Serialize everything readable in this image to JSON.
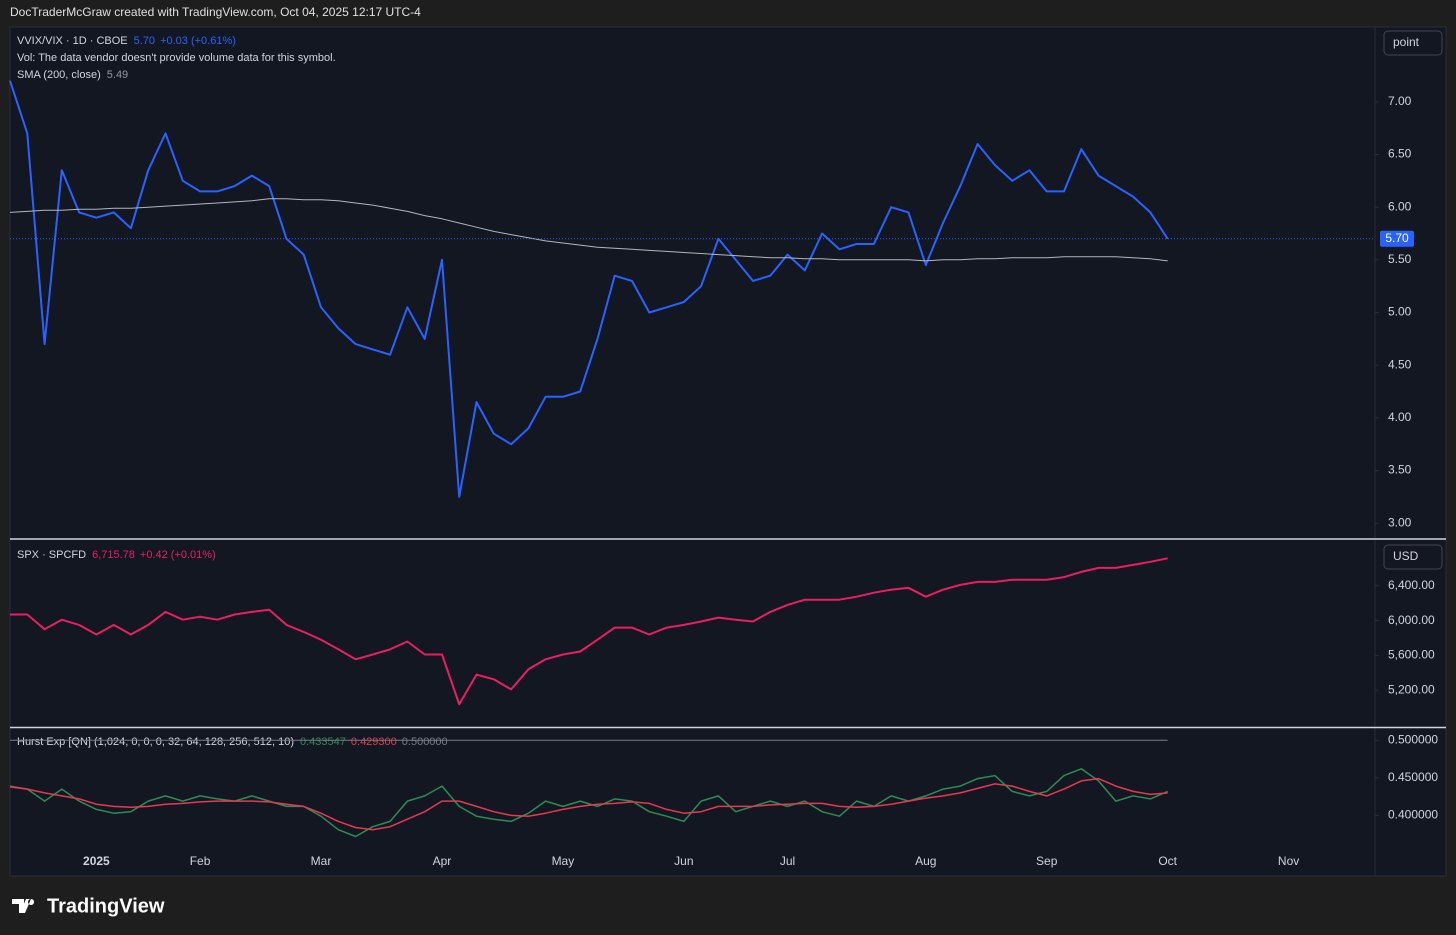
{
  "header": {
    "text": "DocTraderMcGraw created with TradingView.com, Oct 04, 2025 12:17 UTC-4"
  },
  "footer": {
    "brand": "TradingView"
  },
  "chart_data": [
    {
      "type": "line",
      "title": "VVIX/VIX · 1D · CBOE",
      "title_values": [
        "5.70",
        "+0.03 (+0.61%)"
      ],
      "note": "Vol: The data vendor doesn't provide volume data for this symbol.",
      "scale_button": "point",
      "ylim": [
        2.86,
        7.71
      ],
      "yticks": [
        {
          "value": 3,
          "label": "3.00"
        },
        {
          "value": 3.5,
          "label": "3.50"
        },
        {
          "value": 4,
          "label": "4.00"
        },
        {
          "value": 4.5,
          "label": "4.50"
        },
        {
          "value": 5,
          "label": "5.00"
        },
        {
          "value": 5.5,
          "label": "5.50"
        },
        {
          "value": 6,
          "label": "6.00"
        },
        {
          "value": 6.5,
          "label": "6.50"
        },
        {
          "value": 7,
          "label": "7.00"
        }
      ],
      "price_line": {
        "value": 5.7,
        "label": "5.70",
        "color": "#2962ff"
      },
      "series": [
        {
          "color": "#2962ff",
          "values": [
            7.2,
            6.7,
            4.7,
            6.35,
            5.95,
            5.9,
            5.95,
            5.8,
            6.35,
            6.7,
            6.25,
            6.15,
            6.15,
            6.2,
            6.3,
            6.2,
            5.7,
            5.55,
            5.05,
            4.85,
            4.7,
            4.65,
            4.6,
            5.05,
            4.75,
            5.5,
            3.25,
            4.15,
            3.85,
            3.75,
            3.9,
            4.2,
            4.2,
            4.25,
            4.75,
            5.35,
            5.3,
            5.0,
            5.05,
            5.1,
            5.25,
            5.7,
            5.5,
            5.3,
            5.35,
            5.55,
            5.4,
            5.75,
            5.6,
            5.65,
            5.65,
            6.0,
            5.95,
            5.45,
            5.85,
            6.2,
            6.6,
            6.4,
            6.25,
            6.35,
            6.15,
            6.15,
            6.55,
            6.3,
            6.2,
            6.1,
            5.95,
            5.7,
            null,
            null,
            null,
            null,
            null,
            null,
            null,
            null,
            null,
            null,
            null,
            null
          ]
        },
        {
          "name": "SMA (200, close)",
          "value_label": "5.49",
          "color": "#b2b5be",
          "values": [
            5.95,
            5.96,
            5.97,
            5.97,
            5.98,
            5.98,
            5.99,
            5.99,
            6.0,
            6.01,
            6.02,
            6.03,
            6.04,
            6.05,
            6.06,
            6.08,
            6.08,
            6.07,
            6.07,
            6.06,
            6.04,
            6.02,
            5.99,
            5.96,
            5.92,
            5.89,
            5.85,
            5.81,
            5.77,
            5.74,
            5.71,
            5.68,
            5.66,
            5.64,
            5.62,
            5.61,
            5.6,
            5.59,
            5.58,
            5.57,
            5.56,
            5.55,
            5.54,
            5.53,
            5.52,
            5.52,
            5.51,
            5.51,
            5.5,
            5.5,
            5.5,
            5.5,
            5.5,
            5.49,
            5.5,
            5.5,
            5.51,
            5.51,
            5.52,
            5.52,
            5.52,
            5.53,
            5.53,
            5.53,
            5.53,
            5.52,
            5.51,
            5.49,
            null,
            null,
            null,
            null,
            null,
            null,
            null,
            null,
            null,
            null,
            null,
            null
          ]
        }
      ]
    },
    {
      "type": "line",
      "title": "SPX · SPCFD",
      "title_values": [
        "6,715.78",
        "+0.42 (+0.01%)"
      ],
      "scale_button": "USD",
      "ylim": [
        4789,
        6926
      ],
      "yticks": [
        {
          "value": 5200,
          "label": "5,200.00"
        },
        {
          "value": 5600,
          "label": "5,600.00"
        },
        {
          "value": 6000,
          "label": "6,000.00"
        },
        {
          "value": 6400,
          "label": "6,400.00"
        }
      ],
      "series": [
        {
          "color": "#e91e63",
          "values": [
            6070,
            6070,
            5900,
            6010,
            5950,
            5840,
            5950,
            5840,
            5950,
            6100,
            6010,
            6045,
            6010,
            6070,
            6100,
            6125,
            5950,
            5870,
            5780,
            5670,
            5555,
            5610,
            5670,
            5760,
            5610,
            5610,
            5040,
            5380,
            5325,
            5210,
            5440,
            5555,
            5610,
            5645,
            5780,
            5920,
            5920,
            5840,
            5920,
            5950,
            5990,
            6035,
            6010,
            5990,
            6100,
            6180,
            6240,
            6240,
            6240,
            6275,
            6320,
            6355,
            6377,
            6275,
            6355,
            6410,
            6445,
            6445,
            6470,
            6470,
            6470,
            6500,
            6560,
            6605,
            6605,
            6640,
            6675,
            6716,
            null,
            null,
            null,
            null,
            null,
            null,
            null,
            null,
            null,
            null,
            null,
            null
          ]
        }
      ]
    },
    {
      "type": "line",
      "title": "Hurst Exp [QN] (1,024, 0, 0, 0, 32, 64, 128, 256, 512, 10)",
      "ylim": [
        0.354,
        0.515
      ],
      "yticks": [
        {
          "value": 0.4,
          "label": "0.400000"
        },
        {
          "value": 0.45,
          "label": "0.450000"
        },
        {
          "value": 0.5,
          "label": "0.500000"
        }
      ],
      "level": {
        "value": 0.5,
        "label": "0.500000",
        "color": "#787b86"
      },
      "categories": [
        null,
        null,
        null,
        null,
        null,
        "2025",
        null,
        null,
        null,
        null,
        null,
        "Feb",
        null,
        null,
        null,
        null,
        null,
        null,
        "Mar",
        null,
        null,
        null,
        null,
        null,
        null,
        "Apr",
        null,
        null,
        null,
        null,
        null,
        null,
        "May",
        null,
        null,
        null,
        null,
        null,
        null,
        "Jun",
        null,
        null,
        null,
        null,
        null,
        "Jul",
        null,
        null,
        null,
        null,
        null,
        null,
        null,
        "Aug",
        null,
        null,
        null,
        null,
        null,
        null,
        "Sep",
        null,
        null,
        null,
        null,
        null,
        null,
        "Oct",
        null,
        null,
        null,
        null,
        null,
        null,
        "Nov",
        null,
        null,
        null,
        null,
        null
      ],
      "series": [
        {
          "value_label": "0.433547",
          "color": "#2e8b57",
          "values": [
            0.439,
            0.435,
            0.419,
            0.435,
            0.419,
            0.408,
            0.403,
            0.405,
            0.419,
            0.426,
            0.419,
            0.426,
            0.422,
            0.419,
            0.426,
            0.419,
            0.412,
            0.412,
            0.399,
            0.381,
            0.372,
            0.385,
            0.392,
            0.419,
            0.426,
            0.439,
            0.412,
            0.399,
            0.395,
            0.392,
            0.403,
            0.419,
            0.412,
            0.419,
            0.412,
            0.422,
            0.419,
            0.405,
            0.399,
            0.392,
            0.419,
            0.426,
            0.405,
            0.412,
            0.419,
            0.412,
            0.419,
            0.405,
            0.399,
            0.419,
            0.412,
            0.426,
            0.419,
            0.426,
            0.435,
            0.439,
            0.449,
            0.453,
            0.432,
            0.426,
            0.432,
            0.453,
            0.462,
            0.446,
            0.419,
            0.426,
            0.422,
            0.432,
            null,
            null,
            null,
            null,
            null,
            null,
            null,
            null,
            null,
            null,
            null,
            null
          ]
        },
        {
          "value_label": "0.429300",
          "color": "#e53950",
          "values": [
            0.438,
            0.435,
            0.43,
            0.426,
            0.422,
            0.415,
            0.412,
            0.411,
            0.412,
            0.415,
            0.416,
            0.418,
            0.419,
            0.419,
            0.419,
            0.418,
            0.415,
            0.412,
            0.403,
            0.392,
            0.384,
            0.381,
            0.385,
            0.395,
            0.405,
            0.419,
            0.419,
            0.412,
            0.405,
            0.4,
            0.399,
            0.403,
            0.408,
            0.412,
            0.415,
            0.416,
            0.418,
            0.416,
            0.408,
            0.403,
            0.405,
            0.412,
            0.412,
            0.412,
            0.414,
            0.415,
            0.416,
            0.416,
            0.412,
            0.411,
            0.412,
            0.415,
            0.419,
            0.423,
            0.426,
            0.43,
            0.436,
            0.442,
            0.439,
            0.432,
            0.426,
            0.435,
            0.446,
            0.449,
            0.439,
            0.432,
            0.428,
            0.43,
            null,
            null,
            null,
            null,
            null,
            null,
            null,
            null,
            null,
            null,
            null,
            null
          ]
        }
      ]
    }
  ]
}
